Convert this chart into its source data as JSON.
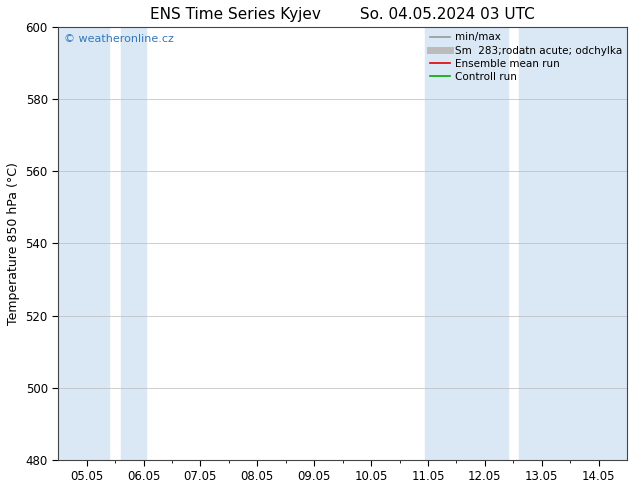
{
  "title": "ENS Time Series Kyjev",
  "title2": "So. 04.05.2024 03 UTC",
  "ylabel": "Temperature 850 hPa (°C)",
  "ylim": [
    480,
    600
  ],
  "yticks": [
    480,
    500,
    520,
    540,
    560,
    580,
    600
  ],
  "xtick_labels": [
    "05.05",
    "06.05",
    "07.05",
    "08.05",
    "09.05",
    "10.05",
    "11.05",
    "12.05",
    "13.05",
    "14.05"
  ],
  "bg_color": "#ffffff",
  "band_color": "#dae8f5",
  "watermark": "© weatheronline.cz",
  "watermark_color": "#3377bb",
  "legend_items": [
    {
      "label": "min/max",
      "color": "#999999",
      "lw": 1.2
    },
    {
      "label": "Sm  283;rodatn acute; odchylka",
      "color": "#bbbbbb",
      "lw": 5
    },
    {
      "label": "Ensemble mean run",
      "color": "#dd0000",
      "lw": 1.2
    },
    {
      "label": "Controll run",
      "color": "#00aa00",
      "lw": 1.2
    }
  ],
  "band_day_indices": [
    0,
    6,
    7,
    9
  ],
  "title_fontsize": 11,
  "tick_fontsize": 8.5,
  "ylabel_fontsize": 9
}
